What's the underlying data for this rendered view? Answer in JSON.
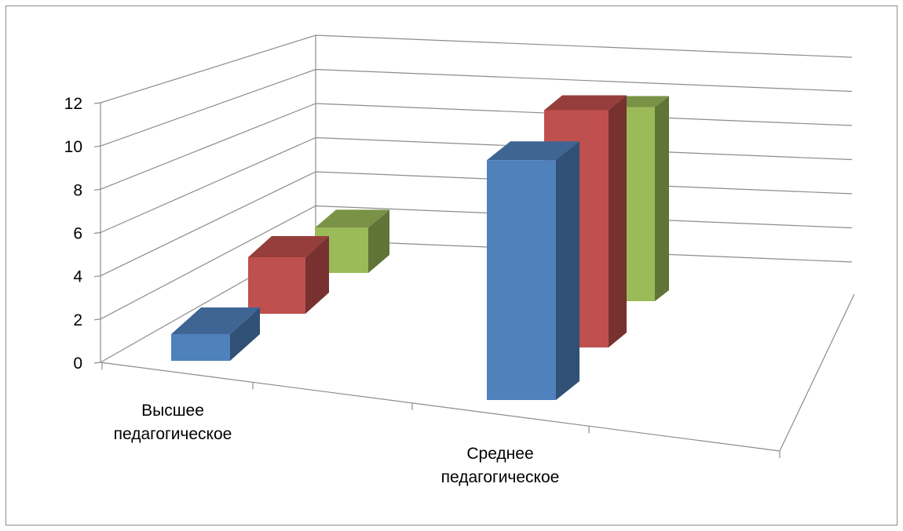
{
  "chart_data": {
    "type": "bar",
    "categories": [
      "Высшее педагогическое",
      "Среднее педагогическое"
    ],
    "category_label_lines": [
      [
        "Высшее",
        "педагогическое"
      ],
      [
        "Среднее",
        "педагогическое"
      ]
    ],
    "series": [
      {
        "values": [
          1,
          11
        ],
        "color": "#4F81BD"
      },
      {
        "values": [
          3,
          11
        ],
        "color": "#C0504D"
      },
      {
        "values": [
          4,
          11
        ],
        "color": "#9BBB59"
      }
    ],
    "yticks": [
      "0",
      "2",
      "4",
      "6",
      "8",
      "10",
      "12"
    ],
    "ylim": [
      0,
      12
    ],
    "grid": true,
    "legend": "none",
    "xlabel": "",
    "ylabel": "",
    "title": ""
  }
}
